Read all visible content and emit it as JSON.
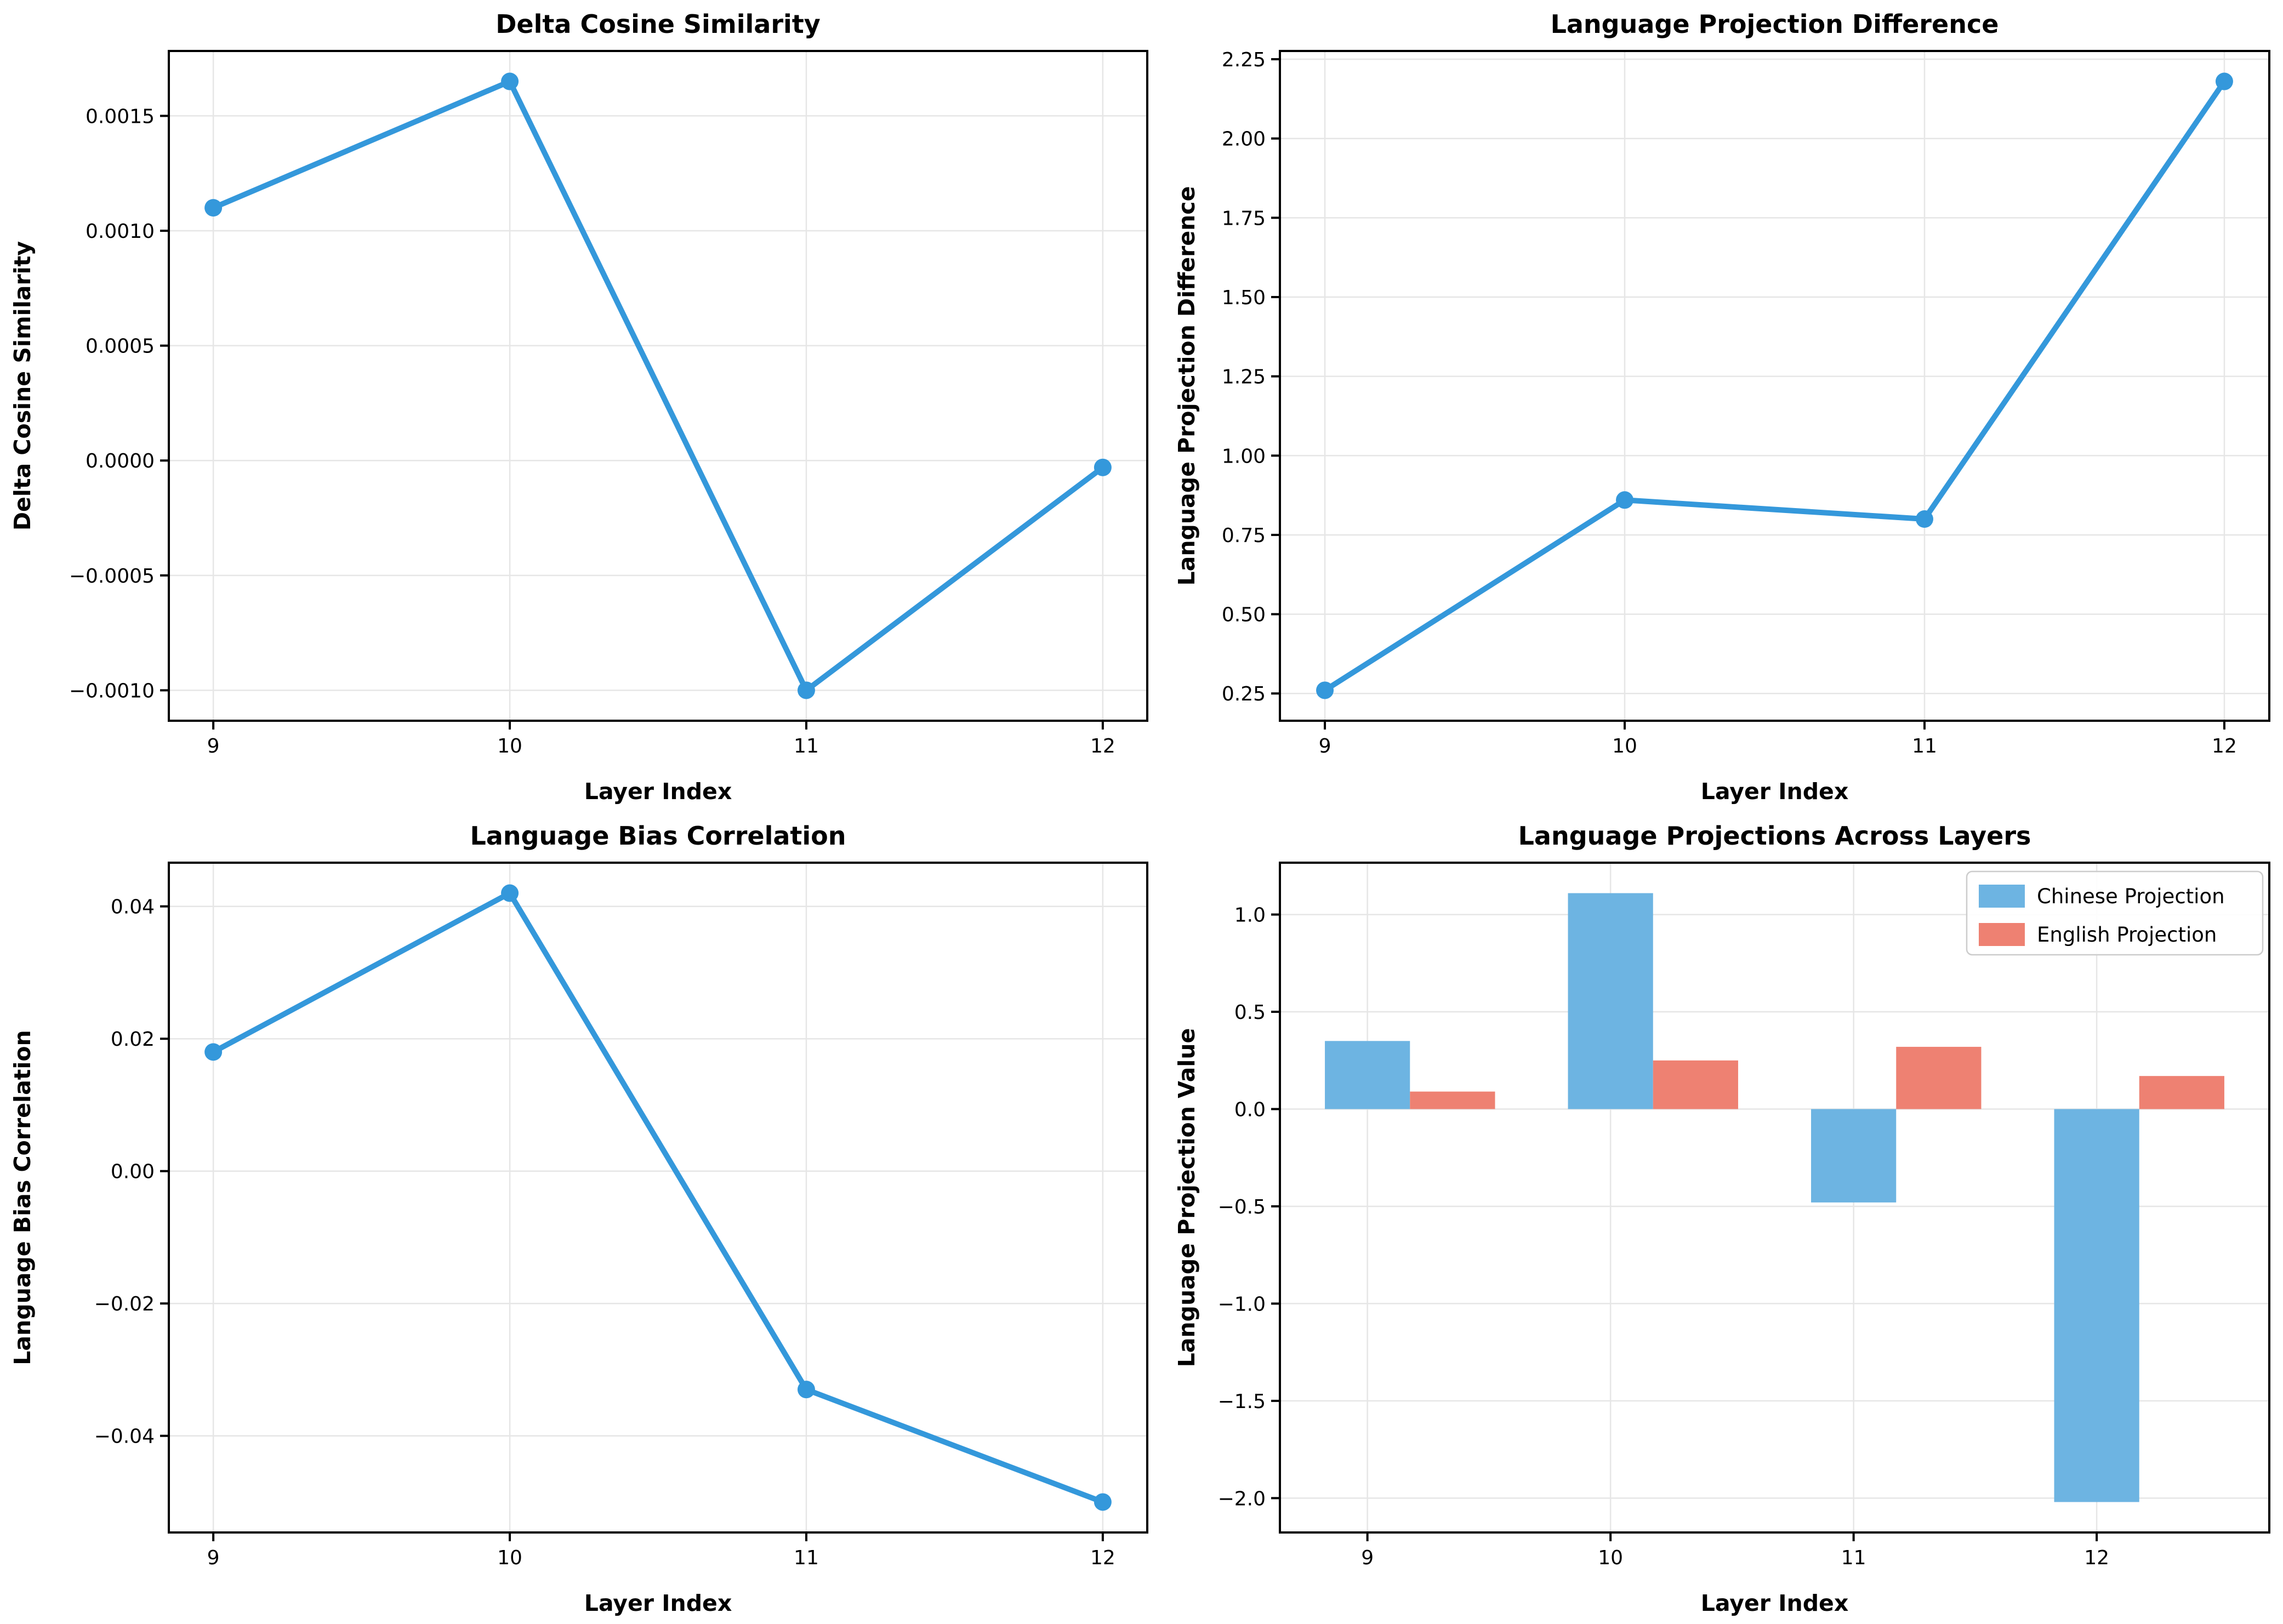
{
  "figure": {
    "background": "#ffffff",
    "grid_color": "#e6e6e6",
    "spine_color": "#000000",
    "text_color": "#000000",
    "line_color": "#3498db",
    "bar_blue": "#6db4e2",
    "bar_red": "#ee8172"
  },
  "chart_data": [
    {
      "id": "delta-cosine-similarity",
      "type": "line",
      "title": "Delta Cosine Similarity",
      "xlabel": "Layer Index",
      "ylabel": "Delta Cosine Similarity",
      "x": [
        9,
        10,
        11,
        12
      ],
      "series": [
        {
          "name": "Delta Cosine Similarity",
          "color": "#3498db",
          "values": [
            0.0011,
            0.00165,
            -0.001,
            -3e-05
          ]
        }
      ],
      "xlim": [
        8.85,
        12.15
      ],
      "ylim": [
        -0.0011325,
        0.0017825
      ],
      "grid": true,
      "legend": null,
      "xticks": {
        "values": [
          9,
          10,
          11,
          12
        ],
        "labels": [
          "9",
          "10",
          "11",
          "12"
        ]
      },
      "yticks": {
        "values": [
          0.0015,
          0.001,
          0.0005,
          0.0,
          -0.0005,
          -0.001
        ],
        "labels": [
          "0.0015",
          "0.0010",
          "0.0005",
          "0.0000",
          "−0.0005",
          "−0.0010"
        ]
      }
    },
    {
      "id": "language-projection-difference",
      "type": "line",
      "title": "Language Projection Difference",
      "xlabel": "Layer Index",
      "ylabel": "Language Projection Difference",
      "x": [
        9,
        10,
        11,
        12
      ],
      "series": [
        {
          "name": "Language Projection Difference",
          "color": "#3498db",
          "values": [
            0.26,
            0.86,
            0.8,
            2.18
          ]
        }
      ],
      "xlim": [
        8.85,
        12.15
      ],
      "ylim": [
        0.164,
        2.276
      ],
      "grid": true,
      "legend": null,
      "xticks": {
        "values": [
          9,
          10,
          11,
          12
        ],
        "labels": [
          "9",
          "10",
          "11",
          "12"
        ]
      },
      "yticks": {
        "values": [
          2.25,
          2.0,
          1.75,
          1.5,
          1.25,
          1.0,
          0.75,
          0.5,
          0.25
        ],
        "labels": [
          "2.25",
          "2.00",
          "1.75",
          "1.50",
          "1.25",
          "1.00",
          "0.75",
          "0.50",
          "0.25"
        ]
      }
    },
    {
      "id": "language-bias-correlation",
      "type": "line",
      "title": "Language Bias Correlation",
      "xlabel": "Layer Index",
      "ylabel": "Language Bias Correlation",
      "x": [
        9,
        10,
        11,
        12
      ],
      "series": [
        {
          "name": "Language Bias Correlation",
          "color": "#3498db",
          "values": [
            0.018,
            0.042,
            -0.033,
            -0.05
          ]
        }
      ],
      "xlim": [
        8.85,
        12.15
      ],
      "ylim": [
        -0.0546,
        0.0466
      ],
      "grid": true,
      "legend": null,
      "xticks": {
        "values": [
          9,
          10,
          11,
          12
        ],
        "labels": [
          "9",
          "10",
          "11",
          "12"
        ]
      },
      "yticks": {
        "values": [
          0.04,
          0.02,
          0.0,
          -0.02,
          -0.04
        ],
        "labels": [
          "0.04",
          "0.02",
          "0.00",
          "−0.02",
          "−0.04"
        ]
      }
    },
    {
      "id": "language-projections-across-layers",
      "type": "bar",
      "title": "Language Projections Across Layers",
      "xlabel": "Layer Index",
      "ylabel": "Language Projection Value",
      "categories": [
        9,
        10,
        11,
        12
      ],
      "bar_width": 0.35,
      "series": [
        {
          "name": "Chinese Projection",
          "color": "#6db4e2",
          "offset": 0.0,
          "values": [
            0.35,
            1.11,
            -0.48,
            -2.02
          ]
        },
        {
          "name": "English Projection",
          "color": "#ee8172",
          "offset": 0.35,
          "values": [
            0.09,
            0.25,
            0.32,
            0.17
          ]
        }
      ],
      "xlim": [
        8.64,
        12.71
      ],
      "ylim": [
        -2.1765,
        1.2665
      ],
      "grid": true,
      "legend": {
        "position": "top-right",
        "entries": [
          "Chinese Projection",
          "English Projection"
        ]
      },
      "xticks": {
        "values": [
          9,
          10,
          11,
          12
        ],
        "labels": [
          "9",
          "10",
          "11",
          "12"
        ]
      },
      "yticks": {
        "values": [
          1.0,
          0.5,
          0.0,
          -0.5,
          -1.0,
          -1.5,
          -2.0
        ],
        "labels": [
          "1.0",
          "0.5",
          "0.0",
          "−0.5",
          "−1.0",
          "−1.5",
          "−2.0"
        ]
      }
    }
  ]
}
